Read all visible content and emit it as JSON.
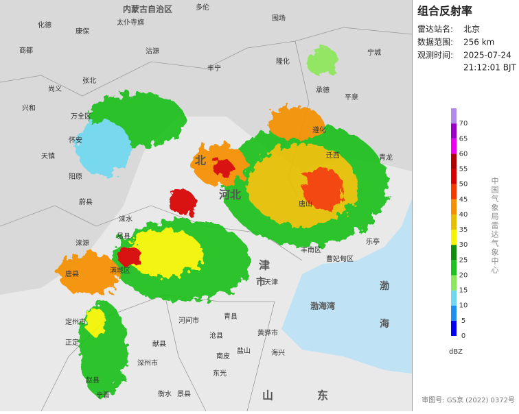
{
  "panel": {
    "title": "组合反射率",
    "station_label": "雷达站名:",
    "station": "北京",
    "range_label": "数据范围:",
    "range": "256 km",
    "time_label": "观测时间:",
    "time_lines": [
      "2025-07-24",
      "21:12:01 BJT"
    ]
  },
  "legend": {
    "unit": "dBZ",
    "levels": [
      {
        "value": 0,
        "color": "#0000f0"
      },
      {
        "value": 5,
        "color": "#1e8ff0"
      },
      {
        "value": 10,
        "color": "#6fd8f0"
      },
      {
        "value": 15,
        "color": "#8ce85a"
      },
      {
        "value": 20,
        "color": "#1fc01f"
      },
      {
        "value": 25,
        "color": "#108c10"
      },
      {
        "value": 30,
        "color": "#f5f500"
      },
      {
        "value": 35,
        "color": "#e6c000"
      },
      {
        "value": 40,
        "color": "#f59000"
      },
      {
        "value": 45,
        "color": "#f53a00"
      },
      {
        "value": 50,
        "color": "#d80000"
      },
      {
        "value": 55,
        "color": "#b00000"
      },
      {
        "value": 60,
        "color": "#f000f0"
      },
      {
        "value": 65,
        "color": "#9a00c8"
      },
      {
        "value": 70,
        "color": "#b08ce8"
      }
    ]
  },
  "source": "中国气象局雷达气象中心",
  "footer": "审图号: GS京 (2022) 0372号",
  "map": {
    "labels": [
      "内蒙古自治区",
      "多伦",
      "化德",
      "太仆寺旗",
      "康保",
      "商都",
      "张北",
      "尚义",
      "沽源",
      "丰宁",
      "隆化",
      "围场",
      "宁城",
      "承德",
      "平泉",
      "兴和",
      "万全区",
      "怀安",
      "天镇",
      "阳原",
      "蔚县",
      "涞水",
      "涞源",
      "易县",
      "满城区",
      "唐县",
      "定州市",
      "正定",
      "赵县",
      "宁晋",
      "深州市",
      "衡水",
      "景县",
      "献县",
      "河间市",
      "青县",
      "沧县",
      "黄骅市",
      "海兴",
      "盐山",
      "东光",
      "南皮",
      "乐亭",
      "青龙",
      "迁西",
      "遵化",
      "唐山",
      "丰南区",
      "曹妃甸区",
      "天津",
      "渤海湾",
      "渤",
      "海",
      "河北",
      "北",
      "津",
      "市",
      "山",
      "东"
    ]
  }
}
